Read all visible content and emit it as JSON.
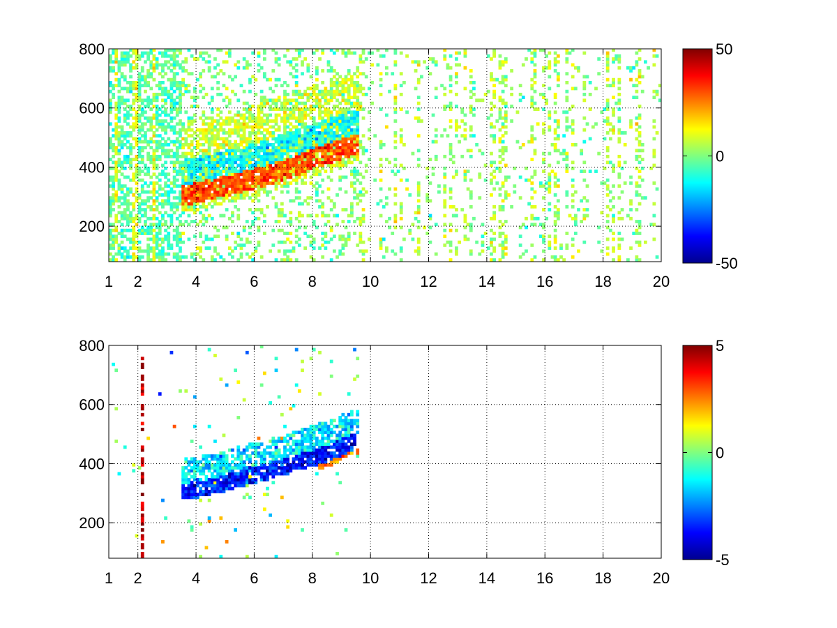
{
  "chart_data": [
    {
      "type": "heatmap",
      "title": "",
      "xlabel": "",
      "ylabel": "",
      "xlim": [
        1,
        20
      ],
      "ylim": [
        80,
        800
      ],
      "x_ticks": [
        "1",
        "2",
        "4",
        "6",
        "8",
        "10",
        "12",
        "14",
        "16",
        "18",
        "20"
      ],
      "x_tick_values": [
        1,
        2,
        4,
        6,
        8,
        10,
        12,
        14,
        16,
        18,
        20
      ],
      "y_ticks": [
        "200",
        "400",
        "600",
        "800"
      ],
      "y_tick_values": [
        200,
        400,
        600,
        800
      ],
      "grid": true,
      "colormap": "jet",
      "colorbar": {
        "min": -50,
        "max": 50,
        "ticks": [
          "50",
          "0",
          "-50"
        ],
        "tick_values": [
          50,
          0,
          -50
        ]
      },
      "features": {
        "ridge": [
          [
            3.6,
            300
          ],
          [
            4.5,
            320
          ],
          [
            5.5,
            345
          ],
          [
            6.5,
            370
          ],
          [
            7.5,
            405
          ],
          [
            8.5,
            440
          ],
          [
            9.4,
            470
          ]
        ],
        "ridge_value": 30,
        "data_extent_x": [
          1,
          9.5
        ],
        "sparse_noise_x": [
          9.5,
          20
        ],
        "background_value": 0
      }
    },
    {
      "type": "heatmap",
      "title": "",
      "xlabel": "",
      "ylabel": "",
      "xlim": [
        1,
        20
      ],
      "ylim": [
        80,
        800
      ],
      "x_ticks": [
        "1",
        "2",
        "4",
        "6",
        "8",
        "10",
        "12",
        "14",
        "16",
        "18",
        "20"
      ],
      "x_tick_values": [
        1,
        2,
        4,
        6,
        8,
        10,
        12,
        14,
        16,
        18,
        20
      ],
      "y_ticks": [
        "200",
        "400",
        "600",
        "800"
      ],
      "y_tick_values": [
        200,
        400,
        600,
        800
      ],
      "grid": true,
      "colormap": "jet",
      "colorbar": {
        "min": -5,
        "max": 5,
        "ticks": [
          "5",
          "0",
          "-5"
        ],
        "tick_values": [
          5,
          0,
          -5
        ]
      },
      "features": {
        "ridge": [
          [
            3.6,
            300
          ],
          [
            4.5,
            315
          ],
          [
            5.5,
            345
          ],
          [
            6.5,
            370
          ],
          [
            7.5,
            400
          ],
          [
            8.5,
            430
          ],
          [
            9.4,
            470
          ]
        ],
        "ridge_value": -3.5,
        "edge_value": 2.5,
        "data_extent_x": [
          3.5,
          9.5
        ],
        "stray_column_x": 2.1,
        "stray_column_value": 4.5
      }
    }
  ]
}
